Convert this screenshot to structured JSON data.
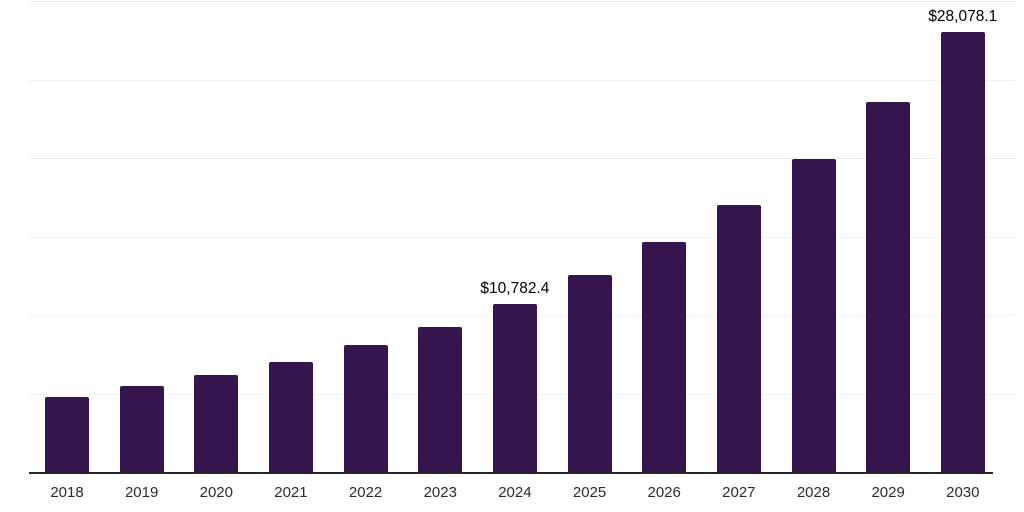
{
  "chart_data": {
    "type": "bar",
    "title": "",
    "xlabel": "",
    "ylabel": "",
    "categories": [
      "2018",
      "2019",
      "2020",
      "2021",
      "2022",
      "2023",
      "2024",
      "2025",
      "2026",
      "2027",
      "2028",
      "2029",
      "2030"
    ],
    "values": [
      4830,
      5570,
      6270,
      7090,
      8150,
      9330,
      10782.4,
      12600,
      14700,
      17100,
      20030,
      23600,
      28078.1
    ],
    "value_labels": [
      "",
      "",
      "",
      "",
      "",
      "",
      "$10,782.4",
      "",
      "",
      "",
      "",
      "",
      "$28,078.1"
    ],
    "ylim": [
      0,
      30000
    ],
    "gridline_step": 5000,
    "grid": true,
    "legend": false,
    "colors": {
      "bar": "#36154E",
      "axis_line": "#262626",
      "gridline": "#f0f0f0",
      "tick_label": "#2b2b2b",
      "value_label": "#000000",
      "background": "#ffffff"
    }
  }
}
